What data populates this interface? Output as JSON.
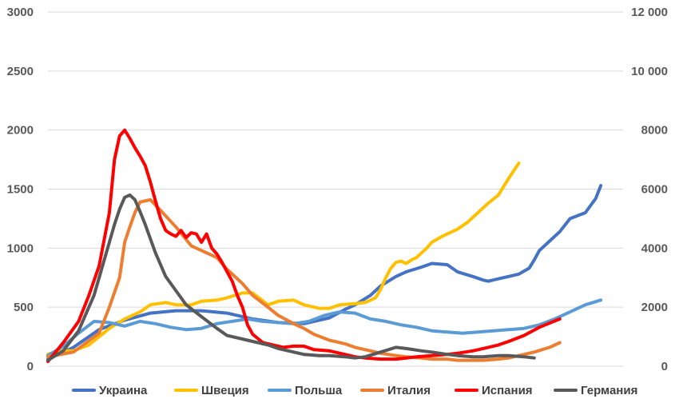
{
  "chart_data": {
    "type": "line",
    "title": "",
    "xlabel": "",
    "ylabel": "",
    "ylim": [
      0,
      3000
    ],
    "y2lim": [
      0,
      12000
    ],
    "y_ticks": [
      "0",
      "500",
      "1000",
      "1500",
      "2000",
      "2500",
      "3000"
    ],
    "y2_ticks": [
      "0",
      "2000",
      "4000",
      "6000",
      "8000",
      "10 000",
      "12 000"
    ],
    "grid": true,
    "legend_position": "bottom",
    "x_index_range": [
      0,
      100
    ],
    "series": [
      {
        "name": "Украина",
        "color": "#4472c4",
        "axis": "left",
        "x": [
          0,
          5,
          10,
          15,
          20,
          25,
          30,
          35,
          40,
          45,
          50,
          55,
          58,
          60,
          63,
          65,
          68,
          70,
          73,
          75,
          78,
          80,
          83,
          85,
          86,
          88,
          90,
          92,
          94,
          95,
          96,
          98,
          100,
          102,
          105,
          107,
          108
        ],
        "y": [
          60,
          160,
          310,
          390,
          450,
          470,
          470,
          450,
          400,
          370,
          360,
          410,
          480,
          520,
          600,
          680,
          760,
          800,
          840,
          870,
          860,
          800,
          760,
          730,
          720,
          740,
          760,
          780,
          830,
          900,
          980,
          1060,
          1140,
          1250,
          1300,
          1420,
          1530
        ]
      },
      {
        "name": "Швеция",
        "color": "#ffc000",
        "axis": "left",
        "x": [
          0,
          2,
          5,
          8,
          10,
          12,
          15,
          18,
          20,
          23,
          25,
          28,
          30,
          33,
          35,
          38,
          40,
          43,
          45,
          48,
          50,
          52,
          53,
          55,
          57,
          60,
          62,
          64,
          65,
          66,
          67,
          68,
          69,
          70,
          71,
          72,
          73,
          74,
          75,
          77,
          80,
          82,
          84,
          86,
          88,
          90,
          92
        ],
        "y": [
          100,
          130,
          130,
          180,
          250,
          320,
          400,
          460,
          520,
          540,
          520,
          520,
          550,
          560,
          580,
          620,
          620,
          520,
          550,
          560,
          520,
          500,
          490,
          490,
          520,
          530,
          540,
          580,
          650,
          750,
          830,
          880,
          890,
          870,
          900,
          920,
          960,
          1000,
          1050,
          1100,
          1160,
          1220,
          1300,
          1380,
          1450,
          1590,
          1720
        ]
      },
      {
        "name": "Польша",
        "color": "#5b9bd5",
        "axis": "left",
        "x": [
          0,
          3,
          6,
          9,
          12,
          15,
          18,
          21,
          24,
          27,
          30,
          33,
          36,
          39,
          42,
          45,
          48,
          51,
          54,
          57,
          60,
          63,
          66,
          69,
          72,
          75,
          78,
          81,
          84,
          87,
          90,
          93,
          96,
          99,
          102,
          105,
          108
        ],
        "y": [
          90,
          170,
          280,
          380,
          370,
          340,
          380,
          360,
          330,
          310,
          320,
          360,
          380,
          400,
          380,
          370,
          360,
          380,
          430,
          460,
          450,
          400,
          380,
          350,
          330,
          300,
          290,
          280,
          290,
          300,
          310,
          320,
          350,
          400,
          460,
          520,
          560
        ]
      },
      {
        "name": "Италия",
        "color": "#ed7d31",
        "axis": "left",
        "x": [
          0,
          5,
          10,
          12,
          14,
          15,
          16,
          17,
          18,
          20,
          22,
          25,
          28,
          30,
          33,
          35,
          38,
          40,
          43,
          45,
          48,
          50,
          52,
          55,
          58,
          60,
          63,
          65,
          68,
          70,
          73,
          75,
          78,
          80,
          83,
          85,
          88,
          90,
          92,
          95,
          98,
          100
        ],
        "y": [
          80,
          120,
          280,
          500,
          750,
          1050,
          1180,
          1300,
          1390,
          1410,
          1320,
          1180,
          1020,
          980,
          920,
          820,
          700,
          600,
          500,
          430,
          360,
          320,
          270,
          220,
          190,
          160,
          130,
          110,
          90,
          80,
          70,
          60,
          60,
          50,
          50,
          50,
          60,
          70,
          90,
          120,
          160,
          200
        ]
      },
      {
        "name": "Испания",
        "color": "#ff0000",
        "axis": "left",
        "x": [
          0,
          3,
          6,
          8,
          10,
          12,
          13,
          14,
          15,
          16,
          17,
          18,
          19,
          20,
          21,
          22,
          23,
          24,
          25,
          26,
          27,
          28,
          29,
          30,
          31,
          32,
          33,
          34,
          35,
          36,
          37,
          38,
          39,
          40,
          42,
          44,
          46,
          48,
          50,
          52,
          55,
          58,
          60,
          62,
          65,
          68,
          70,
          72,
          75,
          78,
          80,
          83,
          85,
          88,
          90,
          93,
          96,
          100
        ],
        "y": [
          40,
          200,
          380,
          600,
          850,
          1300,
          1750,
          1950,
          2000,
          1930,
          1850,
          1780,
          1700,
          1560,
          1400,
          1250,
          1150,
          1120,
          1100,
          1150,
          1090,
          1130,
          1120,
          1050,
          1120,
          1000,
          950,
          880,
          800,
          720,
          600,
          500,
          350,
          270,
          200,
          180,
          160,
          170,
          170,
          140,
          130,
          100,
          80,
          70,
          60,
          60,
          70,
          80,
          90,
          100,
          110,
          130,
          150,
          180,
          210,
          260,
          330,
          400
        ]
      },
      {
        "name": "Германия",
        "color": "#595959",
        "axis": "left",
        "x": [
          0,
          3,
          6,
          9,
          11,
          12,
          13,
          14,
          15,
          16,
          17,
          18,
          19,
          20,
          21,
          22,
          23,
          25,
          27,
          30,
          33,
          35,
          38,
          40,
          43,
          45,
          48,
          50,
          53,
          55,
          58,
          60,
          62,
          65,
          68,
          70,
          73,
          75,
          78,
          80,
          83,
          85,
          88,
          90,
          93,
          95
        ],
        "y": [
          50,
          130,
          300,
          600,
          900,
          1050,
          1200,
          1330,
          1430,
          1450,
          1410,
          1310,
          1200,
          1080,
          960,
          860,
          760,
          640,
          520,
          420,
          320,
          260,
          230,
          210,
          180,
          150,
          120,
          100,
          90,
          90,
          80,
          70,
          80,
          120,
          160,
          150,
          130,
          120,
          100,
          90,
          80,
          80,
          90,
          90,
          80,
          70
        ]
      }
    ]
  }
}
